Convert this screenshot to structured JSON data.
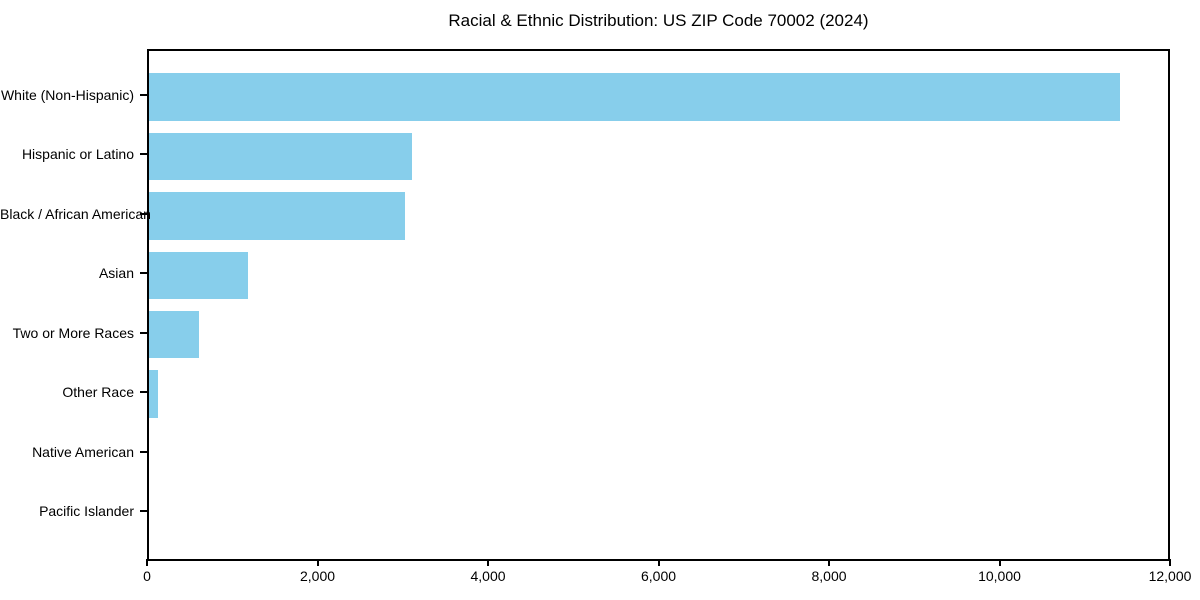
{
  "chart_data": {
    "type": "bar",
    "orientation": "horizontal",
    "title": "Racial & Ethnic Distribution: US ZIP Code 70002 (2024)",
    "categories": [
      "White (Non-Hispanic)",
      "Hispanic or Latino",
      "Black / African American",
      "Asian",
      "Two or More Races",
      "Other Race",
      "Native American",
      "Pacific Islander"
    ],
    "values": [
      11440,
      3100,
      3010,
      1170,
      590,
      105,
      0,
      0
    ],
    "xlabel": "",
    "ylabel": "",
    "xlim": [
      0,
      12000
    ],
    "xticks": [
      0,
      2000,
      4000,
      6000,
      8000,
      10000,
      12000
    ],
    "xtick_labels": [
      "0",
      "2,000",
      "4,000",
      "6,000",
      "8,000",
      "10,000",
      "12,000"
    ],
    "grid": false,
    "legend": false,
    "bar_color": "#87CEEB",
    "axis_color": "#000000",
    "text_color": "#000000",
    "background_color": "#ffffff"
  }
}
